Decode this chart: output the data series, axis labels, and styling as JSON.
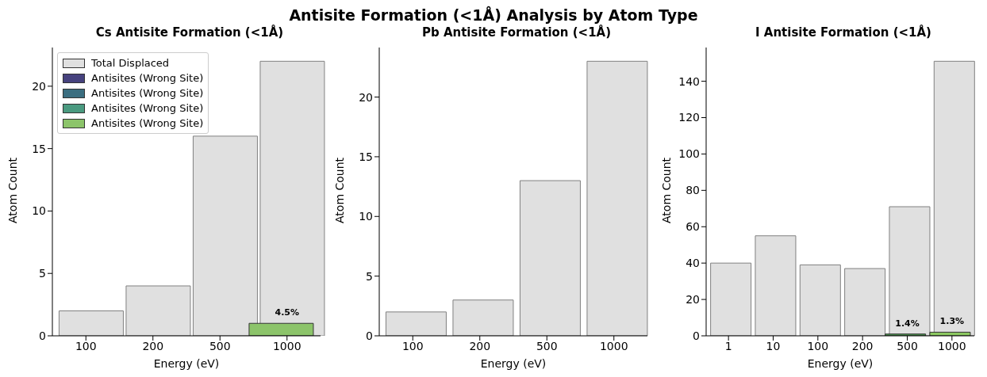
{
  "chart_data": [
    {
      "type": "bar",
      "title": "Cs Antisite Formation (<1Å)",
      "annotations": [
        "Antisite Formation (<1Å) Analysis by Atom Type",
        {
          "text": "4.5%",
          "x": "1000",
          "y": 1
        }
      ],
      "xlabel": "Energy (eV)",
      "ylabel": "Atom Count",
      "categories": [
        "100",
        "200",
        "500",
        "1000"
      ],
      "ylim": [
        0,
        23.1
      ],
      "yticks": [
        0,
        5,
        10,
        15,
        20
      ],
      "legend": "top left",
      "series": [
        {
          "name": "Total Displaced",
          "color": "#e0e0e0",
          "values": [
            2,
            4,
            16,
            22
          ]
        },
        {
          "name": "Antisites (Wrong Site)",
          "color": "#46427e",
          "values": [
            0,
            null,
            null,
            null
          ]
        },
        {
          "name": "Antisites (Wrong Site)",
          "color": "#3b6e80",
          "values": [
            null,
            0,
            null,
            null
          ]
        },
        {
          "name": "Antisites (Wrong Site)",
          "color": "#4a9a80",
          "values": [
            null,
            null,
            0,
            null
          ]
        },
        {
          "name": "Antisites (Wrong Site)",
          "color": "#8cc46a",
          "values": [
            null,
            null,
            null,
            1
          ]
        }
      ]
    },
    {
      "type": "bar",
      "title": "Pb Antisite Formation (<1Å)",
      "xlabel": "Energy (eV)",
      "ylabel": "Atom Count",
      "categories": [
        "100",
        "200",
        "500",
        "1000"
      ],
      "ylim": [
        0,
        24.15
      ],
      "yticks": [
        0,
        5,
        10,
        15,
        20
      ],
      "series": [
        {
          "color": "#e0e0e0",
          "values": [
            2,
            3,
            13,
            23
          ]
        },
        {
          "colors": [
            "#46427e",
            "#3b6e80",
            "#4a9a80",
            "#8cc46a"
          ],
          "values": [
            0,
            0,
            0,
            0
          ]
        }
      ]
    },
    {
      "type": "bar",
      "title": "I Antisite Formation (<1Å)",
      "annotations": [
        {
          "text": "1.4%",
          "x": "500",
          "y": 1
        },
        {
          "text": "1.3%",
          "x": "1000",
          "y": 2
        }
      ],
      "xlabel": "Energy (eV)",
      "ylabel": "Atom Count",
      "categories": [
        "1",
        "10",
        "100",
        "200",
        "500",
        "1000"
      ],
      "ylim": [
        0,
        158.55
      ],
      "yticks": [
        0,
        20,
        40,
        60,
        80,
        100,
        120,
        140
      ],
      "series": [
        {
          "color": "#e0e0e0",
          "values": [
            40,
            55,
            39,
            37,
            71,
            151
          ]
        },
        {
          "colors": [
            "#46427e",
            "#3f5f8a",
            "#35808a",
            "#3a9b80",
            "#4c9a50",
            "#8cc860"
          ],
          "values": [
            0,
            0,
            0,
            0,
            1,
            2
          ]
        }
      ]
    }
  ]
}
